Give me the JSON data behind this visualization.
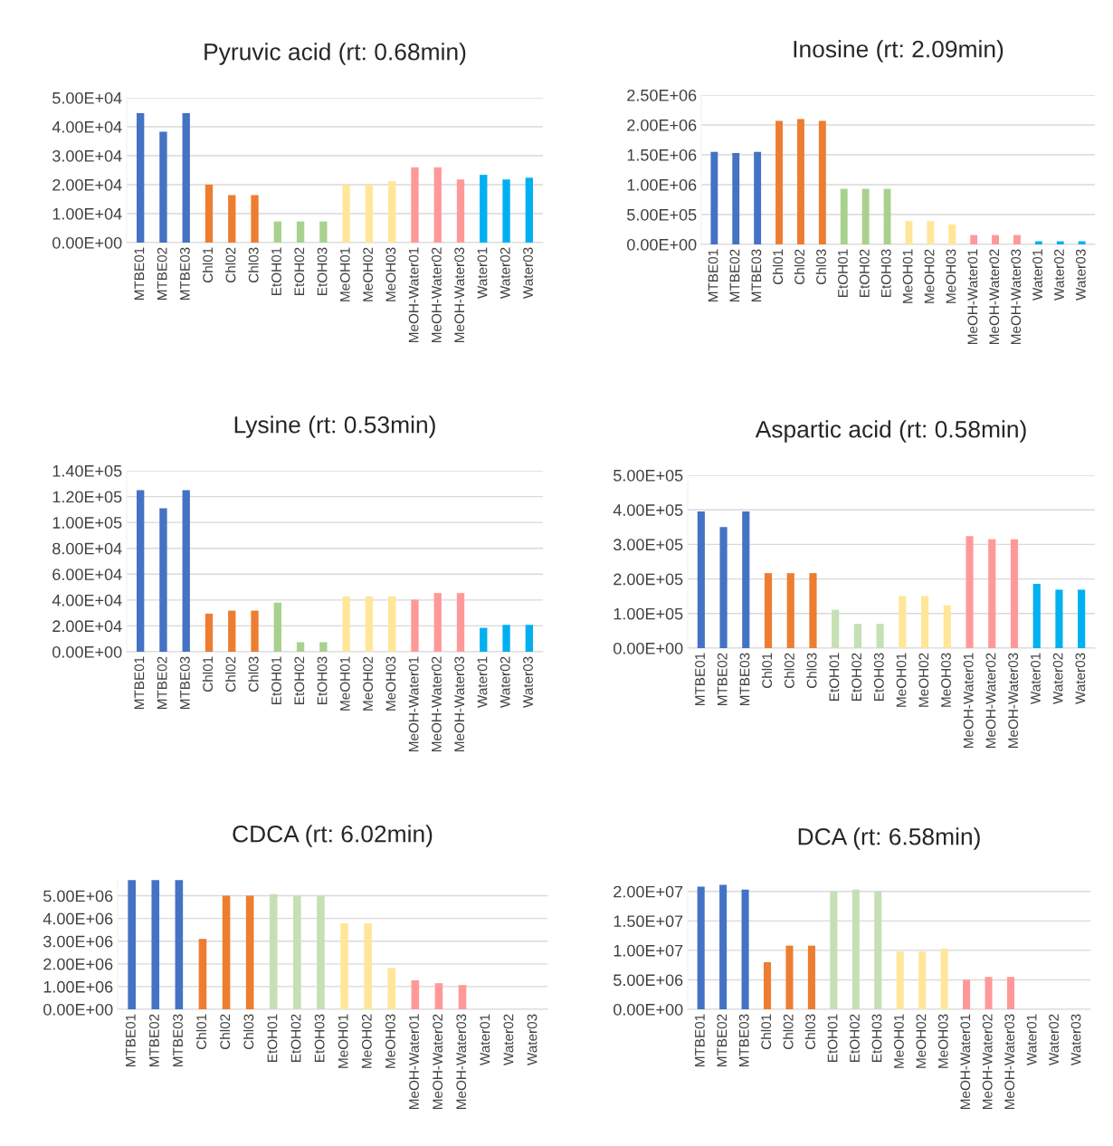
{
  "chart_data": [
    {
      "type": "bar",
      "title": "Pyruvic acid (rt: 0.68min)",
      "grid": "y",
      "categories": [
        "MTBE01",
        "MTBE02",
        "MTBE03",
        "Chl01",
        "Chl02",
        "Chl03",
        "EtOH01",
        "EtOH02",
        "EtOH03",
        "MeOH01",
        "MeOH02",
        "MeOH03",
        "MeOH-Water01",
        "MeOH-Water02",
        "MeOH-Water03",
        "Water01",
        "Water02",
        "Water03"
      ],
      "values": [
        44700,
        38300,
        44700,
        20000,
        16400,
        16400,
        7300,
        7300,
        7300,
        20000,
        20000,
        21200,
        26000,
        26000,
        21800,
        23400,
        21800,
        22400
      ],
      "colors": [
        "#4472c4",
        "#4472c4",
        "#4472c4",
        "#ed7d31",
        "#ed7d31",
        "#ed7d31",
        "#a9d18e",
        "#a9d18e",
        "#a9d18e",
        "#ffe699",
        "#ffe699",
        "#ffe699",
        "#ff9999",
        "#ff9999",
        "#ff9999",
        "#00b0f0",
        "#00b0f0",
        "#00b0f0"
      ],
      "ylim": [
        0,
        50000
      ],
      "yticks": [
        {
          "value": 0,
          "label": "0.00E+00"
        },
        {
          "value": 10000,
          "label": "1.00E+04"
        },
        {
          "value": 20000,
          "label": "2.00E+04"
        },
        {
          "value": 30000,
          "label": "3.00E+04"
        },
        {
          "value": 40000,
          "label": "4.00E+04"
        },
        {
          "value": 50000,
          "label": "5.00E+04"
        }
      ]
    },
    {
      "type": "bar",
      "title": "Inosine (rt: 2.09min)",
      "grid": "y",
      "categories": [
        "MTBE01",
        "MTBE02",
        "MTBE03",
        "Chl01",
        "Chl02",
        "Chl03",
        "EtOH01",
        "EtOH02",
        "EtOH03",
        "MeOH01",
        "MeOH02",
        "MeOH03",
        "MeOH-Water01",
        "MeOH-Water02",
        "MeOH-Water03",
        "Water01",
        "Water02",
        "Water03"
      ],
      "values": [
        1550000,
        1530000,
        1550000,
        2070000,
        2100000,
        2070000,
        930000,
        930000,
        930000,
        390000,
        390000,
        335000,
        157000,
        157000,
        157000,
        52000,
        52000,
        52000
      ],
      "colors": [
        "#4472c4",
        "#4472c4",
        "#4472c4",
        "#ed7d31",
        "#ed7d31",
        "#ed7d31",
        "#a9d18e",
        "#a9d18e",
        "#a9d18e",
        "#ffe699",
        "#ffe699",
        "#ffe699",
        "#ff9999",
        "#ff9999",
        "#ff9999",
        "#00b0f0",
        "#00b0f0",
        "#00b0f0"
      ],
      "ylim": [
        0,
        2500000
      ],
      "yticks": [
        {
          "value": 0,
          "label": "0.00E+00"
        },
        {
          "value": 500000,
          "label": "5.00E+05"
        },
        {
          "value": 1000000,
          "label": "1.00E+06"
        },
        {
          "value": 1500000,
          "label": "1.50E+06"
        },
        {
          "value": 2000000,
          "label": "2.00E+06"
        },
        {
          "value": 2500000,
          "label": "2.50E+06"
        }
      ]
    },
    {
      "type": "bar",
      "title": "Lysine (rt: 0.53min)",
      "grid": "y",
      "categories": [
        "MTBE01",
        "MTBE02",
        "MTBE03",
        "Chl01",
        "Chl02",
        "Chl03",
        "EtOH01",
        "EtOH02",
        "EtOH03",
        "MeOH01",
        "MeOH02",
        "MeOH03",
        "MeOH-Water01",
        "MeOH-Water02",
        "MeOH-Water03",
        "Water01",
        "Water02",
        "Water03"
      ],
      "values": [
        124900,
        111000,
        124900,
        29500,
        31800,
        31800,
        38000,
        7400,
        7400,
        42800,
        42800,
        42800,
        40300,
        45400,
        45400,
        18500,
        20800,
        20800
      ],
      "colors": [
        "#4472c4",
        "#4472c4",
        "#4472c4",
        "#ed7d31",
        "#ed7d31",
        "#ed7d31",
        "#a9d18e",
        "#a9d18e",
        "#a9d18e",
        "#ffe699",
        "#ffe699",
        "#ffe699",
        "#ff9999",
        "#ff9999",
        "#ff9999",
        "#00b0f0",
        "#00b0f0",
        "#00b0f0"
      ],
      "ylim": [
        0,
        140000
      ],
      "yticks": [
        {
          "value": 0,
          "label": "0.00E+00"
        },
        {
          "value": 20000,
          "label": "2.00E+04"
        },
        {
          "value": 40000,
          "label": "4.00E+04"
        },
        {
          "value": 60000,
          "label": "6.00E+04"
        },
        {
          "value": 80000,
          "label": "8.00E+04"
        },
        {
          "value": 100000,
          "label": "1.00E+05"
        },
        {
          "value": 120000,
          "label": "1.20E+05"
        },
        {
          "value": 140000,
          "label": "1.40E+05"
        }
      ]
    },
    {
      "type": "bar",
      "title": "Aspartic acid (rt: 0.58min)",
      "grid": "y",
      "categories": [
        "MTBE01",
        "MTBE02",
        "MTBE03",
        "Chl01",
        "Chl02",
        "Chl03",
        "EtOH01",
        "EtOH02",
        "EtOH03",
        "MeOH01",
        "MeOH02",
        "MeOH03",
        "MeOH-Water01",
        "MeOH-Water02",
        "MeOH-Water03",
        "Water01",
        "Water02",
        "Water03"
      ],
      "values": [
        395000,
        350000,
        395000,
        217000,
        217000,
        217000,
        111000,
        70000,
        70000,
        151000,
        151000,
        124000,
        324000,
        315000,
        315000,
        186000,
        169000,
        169000
      ],
      "colors": [
        "#4472c4",
        "#4472c4",
        "#4472c4",
        "#ed7d31",
        "#ed7d31",
        "#ed7d31",
        "#c5e0b4",
        "#c5e0b4",
        "#c5e0b4",
        "#ffe699",
        "#ffe699",
        "#ffe699",
        "#ff9999",
        "#ff9999",
        "#ff9999",
        "#00b0f0",
        "#00b0f0",
        "#00b0f0"
      ],
      "ylim": [
        0,
        500000
      ],
      "yticks": [
        {
          "value": 0,
          "label": "0.00E+00"
        },
        {
          "value": 100000,
          "label": "1.00E+05"
        },
        {
          "value": 200000,
          "label": "2.00E+05"
        },
        {
          "value": 300000,
          "label": "3.00E+05"
        },
        {
          "value": 400000,
          "label": "4.00E+05"
        },
        {
          "value": 500000,
          "label": "5.00E+05"
        }
      ]
    },
    {
      "type": "bar",
      "title": "CDCA (rt: 6.02min)",
      "grid": "y",
      "categories": [
        "MTBE01",
        "MTBE02",
        "MTBE03",
        "Chl01",
        "Chl02",
        "Chl03",
        "EtOH01",
        "EtOH02",
        "EtOH03",
        "MeOH01",
        "MeOH02",
        "MeOH03",
        "MeOH-Water01",
        "MeOH-Water02",
        "MeOH-Water03",
        "Water01",
        "Water02",
        "Water03"
      ],
      "values": [
        5690000,
        5690000,
        5690000,
        3100000,
        5000000,
        5000000,
        5070000,
        5000000,
        5000000,
        3790000,
        3790000,
        1820000,
        1280000,
        1150000,
        1070000,
        0,
        0,
        0
      ],
      "colors": [
        "#4472c4",
        "#4472c4",
        "#4472c4",
        "#ed7d31",
        "#ed7d31",
        "#ed7d31",
        "#c5e0b4",
        "#c5e0b4",
        "#c5e0b4",
        "#ffe699",
        "#ffe699",
        "#ffe699",
        "#ff9999",
        "#ff9999",
        "#ff9999",
        "#00b0f0",
        "#00b0f0",
        "#00b0f0"
      ],
      "ylim": [
        0,
        5700000
      ],
      "yticks": [
        {
          "value": 0,
          "label": "0.00E+00"
        },
        {
          "value": 1000000,
          "label": "1.00E+06"
        },
        {
          "value": 2000000,
          "label": "2.00E+06"
        },
        {
          "value": 3000000,
          "label": "3.00E+06"
        },
        {
          "value": 4000000,
          "label": "4.00E+06"
        },
        {
          "value": 5000000,
          "label": "5.00E+06"
        }
      ]
    },
    {
      "type": "bar",
      "title": "DCA (rt: 6.58min)",
      "grid": "y",
      "categories": [
        "MTBE01",
        "MTBE02",
        "MTBE03",
        "Chl01",
        "Chl02",
        "Chl03",
        "EtOH01",
        "EtOH02",
        "EtOH03",
        "MeOH01",
        "MeOH02",
        "MeOH03",
        "MeOH-Water01",
        "MeOH-Water02",
        "MeOH-Water03",
        "Water01",
        "Water02",
        "Water03"
      ],
      "values": [
        20800000,
        21100000,
        20300000,
        8000000,
        10800000,
        10800000,
        20000000,
        20300000,
        20000000,
        9800000,
        9800000,
        10300000,
        5000000,
        5500000,
        5500000,
        0,
        0,
        0
      ],
      "colors": [
        "#4472c4",
        "#4472c4",
        "#4472c4",
        "#ed7d31",
        "#ed7d31",
        "#ed7d31",
        "#c5e0b4",
        "#c5e0b4",
        "#c5e0b4",
        "#ffe699",
        "#ffe699",
        "#ffe699",
        "#ff9999",
        "#ff9999",
        "#ff9999",
        "#00b0f0",
        "#00b0f0",
        "#00b0f0"
      ],
      "ylim": [
        0,
        21500000
      ],
      "yticks": [
        {
          "value": 0,
          "label": "0.00E+00"
        },
        {
          "value": 5000000,
          "label": "5.00E+06"
        },
        {
          "value": 10000000,
          "label": "1.00E+07"
        },
        {
          "value": 15000000,
          "label": "1.50E+07"
        },
        {
          "value": 20000000,
          "label": "2.00E+07"
        }
      ]
    }
  ]
}
